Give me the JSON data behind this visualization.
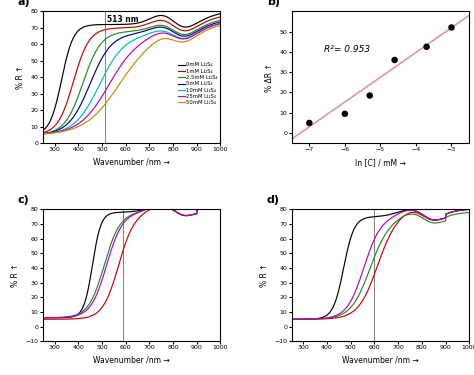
{
  "panel_a": {
    "title": "a)",
    "xlabel": "Wavenumber /nm →",
    "ylabel": "% R ↑",
    "xlim": [
      250,
      1000
    ],
    "ylim": [
      0,
      80
    ],
    "yticks": [
      0,
      10,
      20,
      30,
      40,
      50,
      60,
      70,
      80
    ],
    "xticks": [
      300,
      400,
      500,
      600,
      700,
      800,
      900,
      1000
    ],
    "vline": 513,
    "vline_label": "513 nm",
    "series": [
      {
        "label": "0mM Li₂S₄",
        "color": "#000000",
        "x0": 330,
        "k": 0.04,
        "ymin": 5,
        "ymax": 72,
        "bump_amp": 6,
        "bump_x0": 760,
        "bump_sig": 55
      },
      {
        "label": "1mM Li₂S₄",
        "color": "#cc0000",
        "x0": 380,
        "k": 0.03,
        "ymin": 5,
        "ymax": 70,
        "bump_amp": 5,
        "bump_x0": 760,
        "bump_sig": 55
      },
      {
        "label": "2.5mM Li₂S₄",
        "color": "#228B22",
        "x0": 420,
        "k": 0.026,
        "ymin": 5,
        "ymax": 68,
        "bump_amp": 4,
        "bump_x0": 760,
        "bump_sig": 55
      },
      {
        "label": "5mM Li₂S₄",
        "color": "#000099",
        "x0": 450,
        "k": 0.022,
        "ymin": 5,
        "ymax": 67,
        "bump_amp": 4,
        "bump_x0": 760,
        "bump_sig": 55
      },
      {
        "label": "10mM Li₂S₄",
        "color": "#00BBBB",
        "x0": 490,
        "k": 0.019,
        "ymin": 5,
        "ymax": 66,
        "bump_amp": 3,
        "bump_x0": 760,
        "bump_sig": 55
      },
      {
        "label": "25mM Li₂S₄",
        "color": "#BB00BB",
        "x0": 530,
        "k": 0.016,
        "ymin": 5,
        "ymax": 66,
        "bump_amp": 3,
        "bump_x0": 760,
        "bump_sig": 55
      },
      {
        "label": "50mM Li₂S₄",
        "color": "#CC8800",
        "x0": 570,
        "k": 0.014,
        "ymin": 5,
        "ymax": 65,
        "bump_amp": 3,
        "bump_x0": 760,
        "bump_sig": 55
      }
    ]
  },
  "panel_b": {
    "title": "b)",
    "xlabel": "ln [C] / mM →",
    "ylabel": "% ΔR ↑",
    "xlim": [
      -7.5,
      -2.5
    ],
    "ylim": [
      -5,
      60
    ],
    "xticks": [
      -7,
      -6,
      -5,
      -4,
      -3
    ],
    "yticks": [
      0,
      10,
      20,
      30,
      40,
      50
    ],
    "annotation": "R²= 0.953",
    "scatter_x": [
      -7.0,
      -6.0,
      -5.3,
      -4.6,
      -3.7,
      -3.0
    ],
    "scatter_y": [
      5.0,
      9.5,
      18.5,
      36.0,
      42.5,
      52.0
    ],
    "fit_x": [
      -7.5,
      -2.5
    ],
    "fit_y": [
      -3.0,
      58.0
    ],
    "fit_color": "#dd9999"
  },
  "panel_c": {
    "title": "c)",
    "xlabel": "Wavenumber /nm →",
    "ylabel": "% R ↑",
    "xlim": [
      250,
      1000
    ],
    "ylim": [
      -10,
      80
    ],
    "yticks": [
      -10,
      0,
      10,
      20,
      30,
      40,
      50,
      60,
      70,
      80
    ],
    "xticks": [
      300,
      400,
      500,
      600,
      700,
      800,
      900,
      1000
    ],
    "vline": 590,
    "series": [
      {
        "color": "#000000",
        "x0": 460,
        "k": 0.055,
        "ymin": 6,
        "ymax": 78,
        "bump_amp": 5,
        "bump_x0": 760,
        "bump_sig": 60,
        "dip_amp": 4,
        "dip_x0": 840,
        "dip_sig": 40
      },
      {
        "color": "#cc0000",
        "x0": 570,
        "k": 0.03,
        "ymin": 5,
        "ymax": 78,
        "bump_amp": 5,
        "bump_x0": 760,
        "bump_sig": 60,
        "dip_amp": 4,
        "dip_x0": 840,
        "dip_sig": 40
      },
      {
        "color": "#228B22",
        "x0": 510,
        "k": 0.03,
        "ymin": 6,
        "ymax": 78,
        "bump_amp": 5,
        "bump_x0": 760,
        "bump_sig": 60,
        "dip_amp": 4,
        "dip_x0": 840,
        "dip_sig": 40
      },
      {
        "color": "#BB00BB",
        "x0": 520,
        "k": 0.03,
        "ymin": 6,
        "ymax": 78,
        "bump_amp": 5,
        "bump_x0": 760,
        "bump_sig": 60,
        "dip_amp": 4,
        "dip_x0": 840,
        "dip_sig": 40
      }
    ]
  },
  "panel_d": {
    "title": "d)",
    "xlabel": "Wavenumber /nm →",
    "ylabel": "% R ↑",
    "xlim": [
      250,
      1000
    ],
    "ylim": [
      -10,
      80
    ],
    "yticks": [
      -10,
      0,
      10,
      20,
      30,
      40,
      50,
      60,
      70,
      80
    ],
    "xticks": [
      300,
      400,
      500,
      600,
      700,
      800,
      900,
      1000
    ],
    "vline": 600,
    "series": [
      {
        "color": "#000000",
        "x0": 470,
        "k": 0.045,
        "ymin": 5,
        "ymax": 75,
        "bump_amp": 5,
        "bump_x0": 760,
        "bump_sig": 60,
        "dip_amp": 4,
        "dip_x0": 840,
        "dip_sig": 40
      },
      {
        "color": "#cc0000",
        "x0": 610,
        "k": 0.025,
        "ymin": 5,
        "ymax": 75,
        "bump_amp": 5,
        "bump_x0": 760,
        "bump_sig": 60,
        "dip_amp": 4,
        "dip_x0": 840,
        "dip_sig": 40
      },
      {
        "color": "#228B22",
        "x0": 580,
        "k": 0.025,
        "ymin": 5,
        "ymax": 73,
        "bump_amp": 5,
        "bump_x0": 760,
        "bump_sig": 60,
        "dip_amp": 4,
        "dip_x0": 840,
        "dip_sig": 40
      },
      {
        "color": "#BB00BB",
        "x0": 555,
        "k": 0.028,
        "ymin": 5,
        "ymax": 75,
        "bump_amp": 5,
        "bump_x0": 760,
        "bump_sig": 60,
        "dip_amp": 4,
        "dip_x0": 840,
        "dip_sig": 40
      }
    ]
  },
  "background_color": "#ffffff"
}
